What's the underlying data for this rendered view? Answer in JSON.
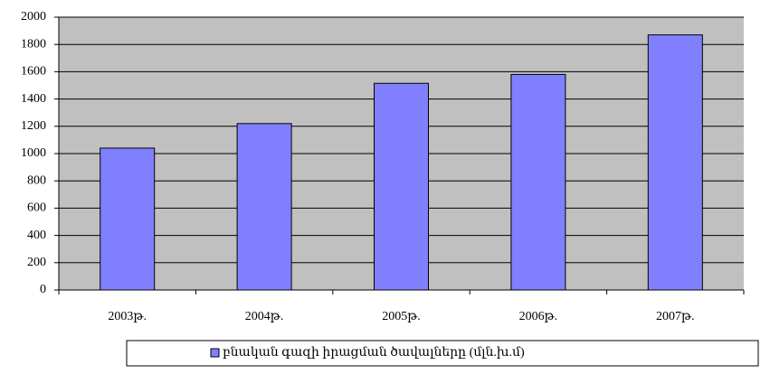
{
  "chart_data": {
    "type": "bar",
    "categories": [
      "2003թ.",
      "2004թ.",
      "2005թ.",
      "2006թ.",
      "2007թ."
    ],
    "series": [
      {
        "name": "բնական գազի իրացման ծավալները (մլն.խ.մ)",
        "color": "#8080ff",
        "values": [
          1040,
          1220,
          1515,
          1580,
          1870
        ]
      }
    ],
    "ylim": [
      0,
      2000
    ],
    "yticks": [
      0,
      200,
      400,
      600,
      800,
      1000,
      1200,
      1400,
      1600,
      1800,
      2000
    ],
    "grid": true,
    "legend": "bottom"
  }
}
